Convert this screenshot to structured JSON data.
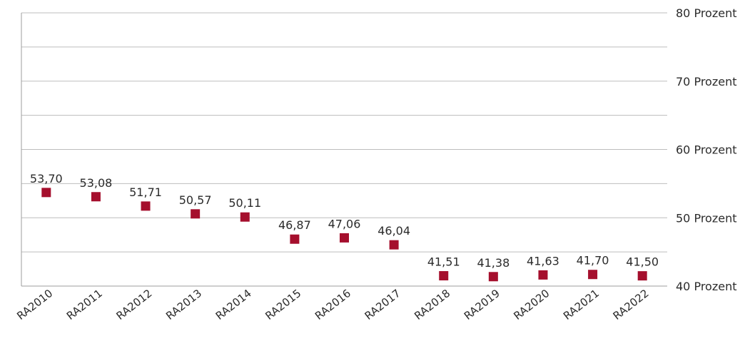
{
  "chart_data": {
    "type": "scatter",
    "title": "",
    "xlabel": "",
    "ylabel": "",
    "categories": [
      "RA2010",
      "RA2011",
      "RA2012",
      "RA2013",
      "RA2014",
      "RA2015",
      "RA2016",
      "RA2017",
      "RA2018",
      "RA2019",
      "RA2020",
      "RA2021",
      "RA2022"
    ],
    "values": [
      53.7,
      53.08,
      51.71,
      50.57,
      50.11,
      46.87,
      47.06,
      46.04,
      41.51,
      41.38,
      41.63,
      41.7,
      41.5
    ],
    "value_labels": [
      "53,70",
      "53,08",
      "51,71",
      "50,57",
      "50,11",
      "46,87",
      "47,06",
      "46,04",
      "41,51",
      "41,38",
      "41,63",
      "41,70",
      "41,50"
    ],
    "ylim": [
      40,
      80
    ],
    "yticks": [
      40,
      50,
      60,
      70,
      80
    ],
    "ytick_labels": [
      "40 Prozent",
      "50 Prozent",
      "60 Prozent",
      "70 Prozent",
      "80 Prozent"
    ],
    "grid": true,
    "marker": "square",
    "marker_color": "#a50f2d"
  }
}
